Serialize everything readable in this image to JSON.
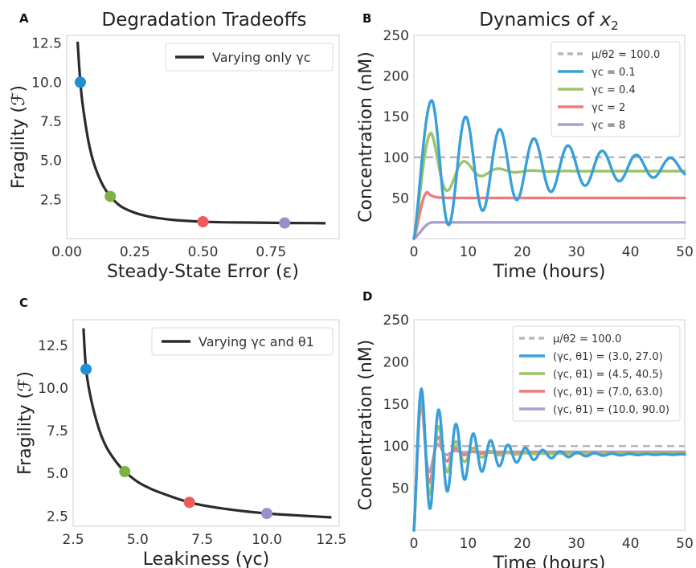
{
  "chart_data": [
    {
      "panel": "A",
      "type": "line",
      "title": "Degradation Tradeoffs",
      "xlabel": "Steady-State Error (ε)",
      "ylabel": "Fragility (ℱ)",
      "xlim": [
        0.0,
        1.0
      ],
      "ylim": [
        0.0,
        13.0
      ],
      "xticks": [
        "0.00",
        "0.25",
        "0.50",
        "0.75"
      ],
      "xtick_values": [
        0.0,
        0.25,
        0.5,
        0.75
      ],
      "yticks": [
        "2.5",
        "5.0",
        "7.5",
        "10.0",
        "12.5"
      ],
      "ytick_values": [
        2.5,
        5.0,
        7.5,
        10.0,
        12.5
      ],
      "legend": "top-right",
      "series": [
        {
          "name": "Varying only γc",
          "color": "#2b2b2b",
          "x": [
            0.04,
            0.05,
            0.06,
            0.08,
            0.1,
            0.13,
            0.16,
            0.2,
            0.25,
            0.3,
            0.35,
            0.4,
            0.5,
            0.6,
            0.7,
            0.8,
            0.9,
            0.95
          ],
          "y": [
            12.6,
            10.0,
            8.4,
            6.2,
            4.8,
            3.5,
            2.7,
            2.05,
            1.65,
            1.42,
            1.28,
            1.18,
            1.08,
            1.04,
            1.02,
            1.0,
            0.99,
            0.98
          ]
        }
      ],
      "markers": [
        {
          "x": 0.05,
          "y": 10.0,
          "color": "#1f8fd6"
        },
        {
          "x": 0.16,
          "y": 2.7,
          "color": "#7cb342"
        },
        {
          "x": 0.5,
          "y": 1.08,
          "color": "#ef5b5b"
        },
        {
          "x": 0.8,
          "y": 1.0,
          "color": "#9b8ec9"
        }
      ]
    },
    {
      "panel": "B",
      "type": "line",
      "title_prefix": "Dynamics of ",
      "title_var": "x",
      "title_sub": "2",
      "xlabel": "Time (hours)",
      "ylabel": "Concentration (nM)",
      "xlim": [
        0,
        50
      ],
      "ylim": [
        0,
        250
      ],
      "xticks": [
        "0",
        "10",
        "20",
        "30",
        "40",
        "50"
      ],
      "xtick_values": [
        0,
        10,
        20,
        30,
        40,
        50
      ],
      "yticks": [
        "50",
        "100",
        "150",
        "200",
        "250"
      ],
      "ytick_values": [
        50,
        100,
        150,
        200,
        250
      ],
      "legend": "top-right",
      "reference": {
        "name": "μ/θ2 = 100.0",
        "value": 100.0,
        "color": "#b8b8b8"
      },
      "series": [
        {
          "name": "γc = 0.1",
          "color": "#3a9fd8",
          "kind": "osc",
          "final": 88,
          "peak": 170,
          "tpeak": 3.3,
          "period": 6.3,
          "decay": 0.045
        },
        {
          "name": "γc = 0.4",
          "color": "#9bc46a",
          "kind": "osc",
          "final": 83,
          "peak": 130,
          "tpeak": 3.2,
          "period": 6.3,
          "decay": 0.22
        },
        {
          "name": "γc = 2",
          "color": "#ee7b7b",
          "kind": "rise",
          "final": 50,
          "peak": 57,
          "tpeak": 2.5
        },
        {
          "name": "γc = 8",
          "color": "#a99fd0",
          "kind": "rise",
          "final": 20,
          "peak": 20,
          "tpeak": 3.5
        }
      ]
    },
    {
      "panel": "C",
      "type": "line",
      "title": "",
      "xlabel": "Leakiness (γc)",
      "ylabel": "Fragility (ℱ)",
      "xlim": [
        2.5,
        12.8
      ],
      "ylim": [
        1.9,
        14.0
      ],
      "xticks": [
        "2.5",
        "5.0",
        "7.5",
        "10.0",
        "12.5"
      ],
      "xtick_values": [
        2.5,
        5.0,
        7.5,
        10.0,
        12.5
      ],
      "yticks": [
        "2.5",
        "5.0",
        "7.5",
        "10.0",
        "12.5"
      ],
      "ytick_values": [
        2.5,
        5.0,
        7.5,
        10.0,
        12.5
      ],
      "legend": "top-right",
      "series": [
        {
          "name": "Varying γc and θ1",
          "color": "#2b2b2b",
          "x": [
            2.9,
            3.0,
            3.2,
            3.5,
            3.8,
            4.2,
            4.5,
            5.0,
            5.5,
            6.0,
            7.0,
            8.0,
            9.0,
            10.0,
            11.0,
            12.5
          ],
          "y": [
            13.5,
            11.1,
            9.3,
            7.6,
            6.5,
            5.6,
            5.1,
            4.5,
            4.1,
            3.8,
            3.3,
            3.0,
            2.8,
            2.65,
            2.55,
            2.42
          ]
        }
      ],
      "markers": [
        {
          "x": 3.0,
          "y": 11.1,
          "color": "#1f8fd6"
        },
        {
          "x": 4.5,
          "y": 5.1,
          "color": "#7cb342"
        },
        {
          "x": 7.0,
          "y": 3.3,
          "color": "#ef5b5b"
        },
        {
          "x": 10.0,
          "y": 2.65,
          "color": "#9b8ec9"
        }
      ]
    },
    {
      "panel": "D",
      "type": "line",
      "title": "",
      "xlabel": "Time (hours)",
      "ylabel": "Concentration (nM)",
      "xlim": [
        0,
        50
      ],
      "ylim": [
        0,
        250
      ],
      "xticks": [
        "0",
        "10",
        "20",
        "30",
        "40",
        "50"
      ],
      "xtick_values": [
        0,
        10,
        20,
        30,
        40,
        50
      ],
      "yticks": [
        "50",
        "100",
        "150",
        "200",
        "250"
      ],
      "ytick_values": [
        50,
        100,
        150,
        200,
        250
      ],
      "legend": "top-right",
      "reference": {
        "name": "μ/θ2 = 100.0",
        "value": 100.0,
        "color": "#b8b8b8"
      },
      "series": [
        {
          "name": "(γc, θ1) = (3.0, 27.0)",
          "color": "#3a9fd8",
          "kind": "osc",
          "final": 90,
          "peak": 168,
          "tpeak": 1.4,
          "period": 3.2,
          "decay": 0.12
        },
        {
          "name": "(γc, θ1) = (4.5, 40.5)",
          "color": "#9bc46a",
          "kind": "osc",
          "final": 91,
          "peak": 163,
          "tpeak": 1.4,
          "period": 3.2,
          "decay": 0.25
        },
        {
          "name": "(γc, θ1) = (7.0, 63.0)",
          "color": "#ee7b7b",
          "kind": "osc",
          "final": 92,
          "peak": 158,
          "tpeak": 1.4,
          "period": 3.2,
          "decay": 0.4
        },
        {
          "name": "(γc, θ1) = (10.0, 90.0)",
          "color": "#a99fd0",
          "kind": "osc",
          "final": 93,
          "peak": 152,
          "tpeak": 1.4,
          "period": 3.2,
          "decay": 0.6
        }
      ]
    }
  ]
}
